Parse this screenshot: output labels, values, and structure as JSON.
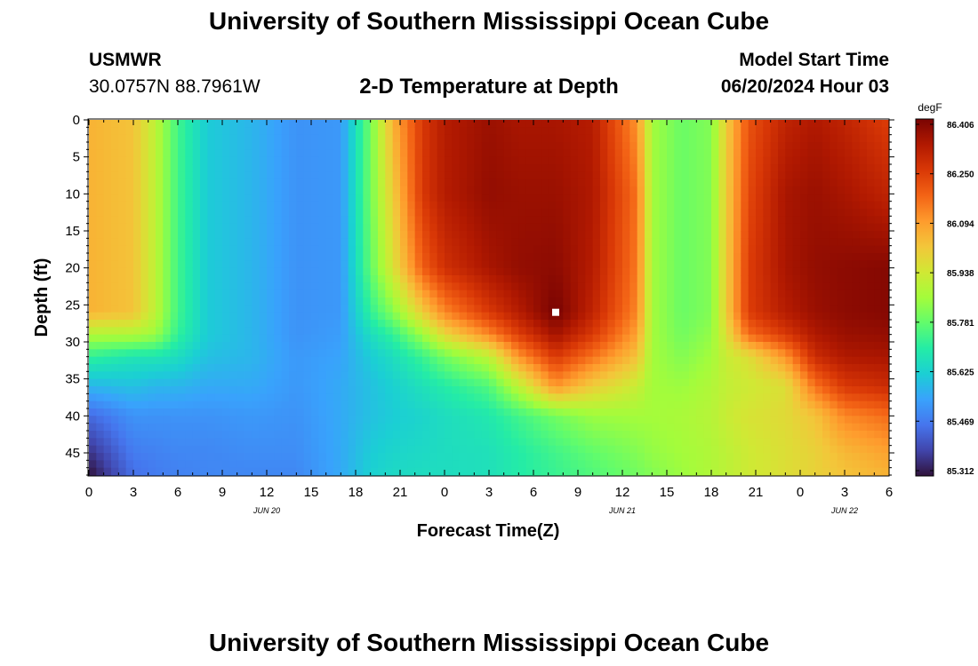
{
  "header": {
    "title": "University of Southern Mississippi Ocean Cube",
    "station_id": "USMWR",
    "coordinates": "30.0757N  88.7961W",
    "plot_title": "2-D Temperature at Depth",
    "model_start_label": "Model Start Time",
    "model_start_value": "06/20/2024 Hour 03"
  },
  "footer": {
    "title": "University of Southern Mississippi Ocean Cube"
  },
  "colors": {
    "ramp": [
      "#30123b",
      "#4145ab",
      "#4675ed",
      "#39a2fc",
      "#1bcfd4",
      "#24eca6",
      "#61fc6c",
      "#a4fc3b",
      "#d1e834",
      "#f3c63a",
      "#fe9b2d",
      "#f36315",
      "#d93806",
      "#b11901",
      "#7a0402"
    ],
    "marker": "#ffffff"
  },
  "chart_data": {
    "type": "heatmap",
    "ylabel": "Depth (ft)",
    "xlabel": "Forecast Time(Z)",
    "unit_label": "degF",
    "ylim": [
      0,
      48
    ],
    "y_ticks": [
      "0",
      "5",
      "10",
      "15",
      "20",
      "25",
      "30",
      "35",
      "40",
      "45"
    ],
    "x_ticks": [
      "0",
      "3",
      "6",
      "9",
      "12",
      "15",
      "18",
      "21",
      "0",
      "3",
      "6",
      "9",
      "12",
      "15",
      "18",
      "21",
      "0",
      "3",
      "6"
    ],
    "date_labels": [
      "JUN 20",
      "JUN 21",
      "JUN 22"
    ],
    "date_label_hours": [
      12,
      36,
      51
    ],
    "xlim_hours": [
      0,
      54
    ],
    "colorbar_ticks": [
      "86.406",
      "86.250",
      "86.094",
      "85.938",
      "85.781",
      "85.625",
      "85.469",
      "85.312"
    ],
    "value_range": [
      85.312,
      86.406
    ],
    "marker": {
      "hour": 31.5,
      "depth": 26
    },
    "profiles": {
      "depths": [
        0,
        10,
        20,
        26,
        29,
        32,
        36,
        40,
        45,
        48
      ],
      "columns": [
        {
          "hour": 0,
          "values": [
            86.05,
            86.05,
            86.05,
            86.05,
            85.88,
            85.72,
            85.58,
            85.45,
            85.36,
            85.31
          ]
        },
        {
          "hour": 3,
          "values": [
            86.02,
            86.02,
            86.02,
            86.02,
            85.88,
            85.68,
            85.6,
            85.52,
            85.48,
            85.46
          ]
        },
        {
          "hour": 4.5,
          "values": [
            85.9,
            85.9,
            85.9,
            85.9,
            85.85,
            85.68,
            85.58,
            85.52,
            85.49,
            85.48
          ]
        },
        {
          "hour": 6,
          "values": [
            85.74,
            85.74,
            85.74,
            85.74,
            85.72,
            85.66,
            85.58,
            85.52,
            85.5,
            85.49
          ]
        },
        {
          "hour": 8,
          "values": [
            85.62,
            85.62,
            85.62,
            85.62,
            85.62,
            85.6,
            85.56,
            85.52,
            85.5,
            85.5
          ]
        },
        {
          "hour": 11,
          "values": [
            85.58,
            85.58,
            85.58,
            85.58,
            85.58,
            85.58,
            85.56,
            85.53,
            85.51,
            85.5
          ]
        },
        {
          "hour": 14,
          "values": [
            85.52,
            85.52,
            85.52,
            85.52,
            85.52,
            85.53,
            85.53,
            85.52,
            85.51,
            85.5
          ]
        },
        {
          "hour": 17,
          "values": [
            85.53,
            85.53,
            85.53,
            85.53,
            85.54,
            85.55,
            85.56,
            85.56,
            85.56,
            85.56
          ]
        },
        {
          "hour": 19,
          "values": [
            85.8,
            85.8,
            85.78,
            85.72,
            85.66,
            85.62,
            85.6,
            85.6,
            85.62,
            85.63
          ]
        },
        {
          "hour": 20.5,
          "values": [
            86.05,
            86.0,
            85.95,
            85.82,
            85.72,
            85.66,
            85.63,
            85.62,
            85.64,
            85.65
          ]
        },
        {
          "hour": 22.5,
          "values": [
            86.25,
            86.25,
            86.18,
            86.0,
            85.85,
            85.73,
            85.67,
            85.64,
            85.65,
            85.66
          ]
        },
        {
          "hour": 24,
          "values": [
            86.32,
            86.32,
            86.27,
            86.12,
            85.98,
            85.8,
            85.7,
            85.66,
            85.66,
            85.66
          ]
        },
        {
          "hour": 27,
          "values": [
            86.36,
            86.37,
            86.34,
            86.25,
            86.12,
            85.9,
            85.76,
            85.69,
            85.67,
            85.67
          ]
        },
        {
          "hour": 29,
          "values": [
            86.34,
            86.36,
            86.37,
            86.32,
            86.24,
            86.1,
            85.9,
            85.74,
            85.7,
            85.7
          ]
        },
        {
          "hour": 31.5,
          "values": [
            86.34,
            86.36,
            86.38,
            86.41,
            86.35,
            86.25,
            86.1,
            85.8,
            85.74,
            85.73
          ]
        },
        {
          "hour": 34,
          "values": [
            86.32,
            86.33,
            86.32,
            86.3,
            86.25,
            86.15,
            86.0,
            85.85,
            85.78,
            85.76
          ]
        },
        {
          "hour": 37,
          "values": [
            86.1,
            86.15,
            86.14,
            86.12,
            86.08,
            86.02,
            85.92,
            85.86,
            85.82,
            85.8
          ]
        },
        {
          "hour": 38,
          "values": [
            85.86,
            85.86,
            85.86,
            85.86,
            85.86,
            85.86,
            85.86,
            85.86,
            85.84,
            85.82
          ]
        },
        {
          "hour": 40,
          "values": [
            85.79,
            85.79,
            85.79,
            85.79,
            85.8,
            85.82,
            85.85,
            85.87,
            85.86,
            85.85
          ]
        },
        {
          "hour": 42,
          "values": [
            85.82,
            85.82,
            85.82,
            85.82,
            85.84,
            85.86,
            85.88,
            85.89,
            85.88,
            85.88
          ]
        },
        {
          "hour": 43,
          "values": [
            86.0,
            86.0,
            86.0,
            86.0,
            85.96,
            85.92,
            85.91,
            85.92,
            85.9,
            85.9
          ]
        },
        {
          "hour": 44.5,
          "values": [
            86.2,
            86.22,
            86.24,
            86.24,
            86.16,
            85.96,
            85.93,
            85.95,
            85.93,
            85.93
          ]
        },
        {
          "hour": 47,
          "values": [
            86.3,
            86.34,
            86.34,
            86.32,
            86.25,
            86.1,
            85.96,
            85.97,
            85.96,
            85.96
          ]
        },
        {
          "hour": 49,
          "values": [
            86.33,
            86.36,
            86.37,
            86.36,
            86.33,
            86.28,
            86.15,
            86.02,
            85.99,
            85.99
          ]
        },
        {
          "hour": 51,
          "values": [
            86.3,
            86.34,
            86.38,
            86.38,
            86.36,
            86.33,
            86.25,
            86.12,
            86.04,
            86.02
          ]
        },
        {
          "hour": 54,
          "values": [
            86.24,
            86.3,
            86.39,
            86.39,
            86.37,
            86.34,
            86.28,
            86.16,
            86.08,
            86.05
          ]
        }
      ]
    }
  }
}
